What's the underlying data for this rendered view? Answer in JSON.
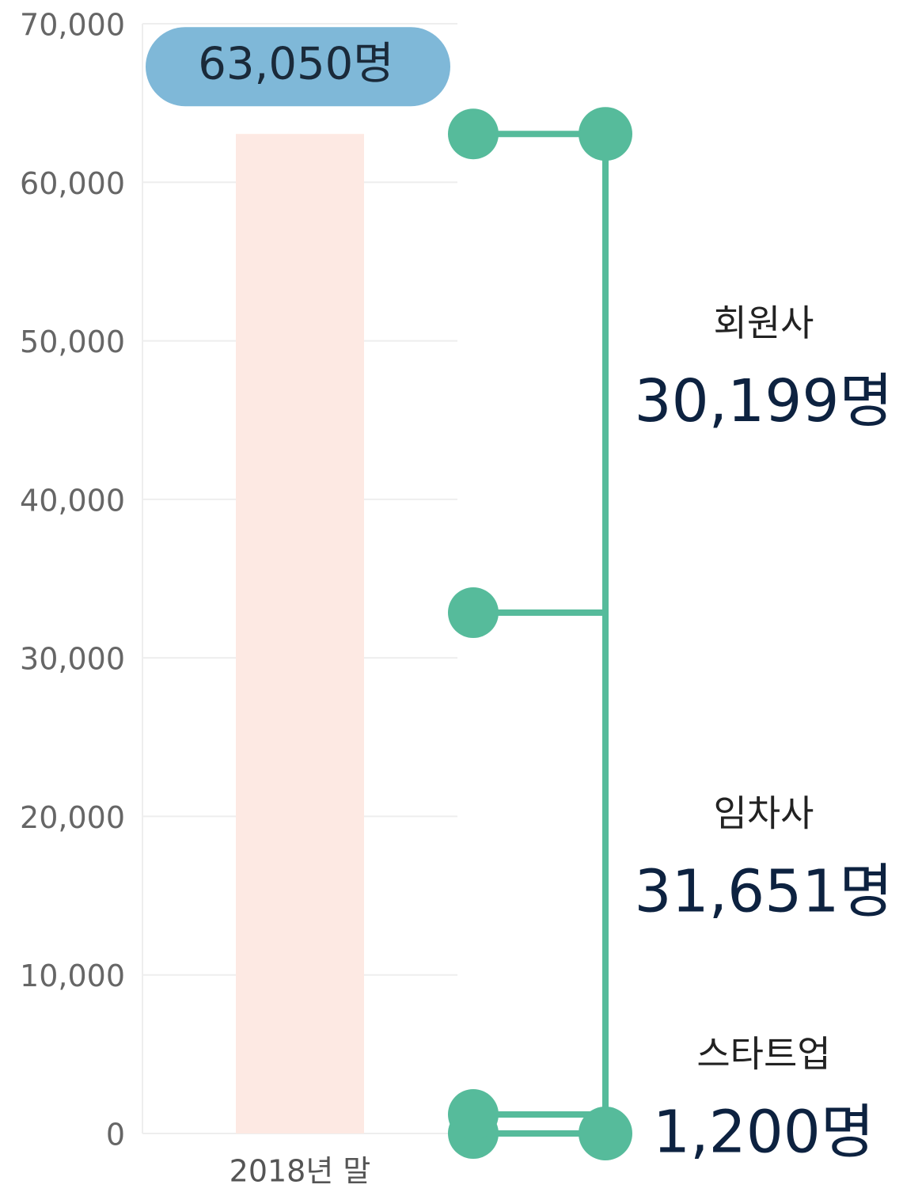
{
  "chart_data": {
    "type": "bar",
    "categories": [
      "2018년 말"
    ],
    "values": [
      63050
    ],
    "value_labels": [
      "63,050명"
    ],
    "color": "#fde9e3",
    "label_color": "#7fb8d8",
    "bracket_color": "#56bb9b",
    "ylim": [
      0,
      70000
    ],
    "yticks": [
      0,
      {
        "value": 10000,
        "label": "10,000"
      },
      {
        "value": 20000,
        "label": "20,000"
      },
      {
        "value": 30000,
        "label": "30,000"
      },
      {
        "value": 40000,
        "label": "40,000"
      },
      {
        "value": 50000,
        "label": "50,000"
      },
      {
        "value": 60000,
        "label": "60,000"
      },
      {
        "value": 70000,
        "label": "70,000"
      }
    ],
    "grid": true,
    "segments": [
      {
        "name": "스타트업",
        "value": 1200,
        "label": "1,200명"
      },
      {
        "name": "임차사",
        "value": 31651,
        "label": "31,651명"
      },
      {
        "name": "회원사",
        "value": 30199,
        "label": "30,199명"
      }
    ]
  }
}
